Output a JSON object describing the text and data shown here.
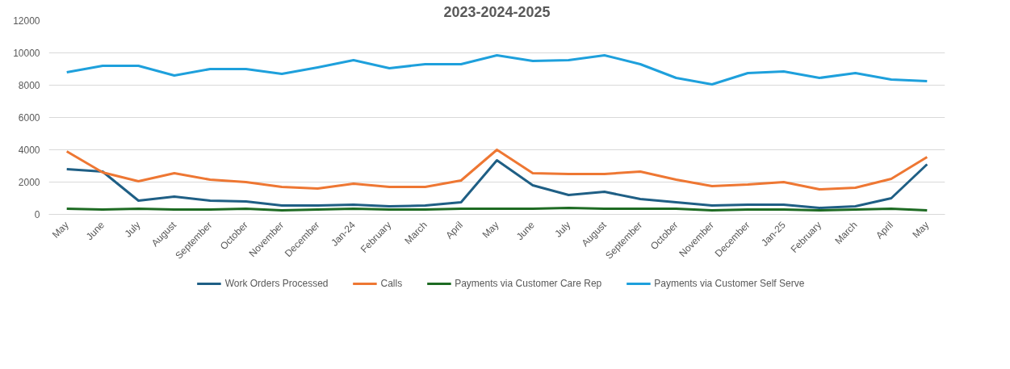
{
  "chart_data": {
    "type": "line",
    "title": "2023-2024-2025",
    "categories": [
      "May",
      "June",
      "July",
      "August",
      "September",
      "October",
      "November",
      "December",
      "Jan-24",
      "February",
      "March",
      "April",
      "May",
      "June",
      "July",
      "August",
      "September",
      "October",
      "November",
      "December",
      "Jan-25",
      "February",
      "March",
      "April",
      "May"
    ],
    "series": [
      {
        "name": "Work Orders Processed",
        "color": "#1f5f85",
        "values": [
          2800,
          2650,
          850,
          1100,
          850,
          800,
          550,
          550,
          600,
          500,
          550,
          750,
          3350,
          1800,
          1200,
          1400,
          950,
          750,
          550,
          600,
          600,
          400,
          500,
          1000,
          3100
        ]
      },
      {
        "name": "Calls",
        "color": "#ee7733",
        "values": [
          3900,
          2600,
          2050,
          2550,
          2150,
          2000,
          1700,
          1600,
          1900,
          1700,
          1700,
          2100,
          4000,
          2550,
          2500,
          2500,
          2650,
          2150,
          1750,
          1850,
          2000,
          1550,
          1650,
          2200,
          3550
        ]
      },
      {
        "name": "Payments via Customer Care Rep",
        "color": "#1e6b23",
        "values": [
          350,
          300,
          350,
          300,
          300,
          350,
          250,
          300,
          350,
          300,
          300,
          350,
          350,
          350,
          400,
          350,
          350,
          350,
          250,
          300,
          300,
          250,
          300,
          350,
          250
        ]
      },
      {
        "name": "Payments via Customer Self Serve",
        "color": "#1ea0dc",
        "values": [
          8800,
          9200,
          9200,
          8600,
          9000,
          9000,
          8700,
          9100,
          9550,
          9050,
          9300,
          9300,
          9850,
          9500,
          9550,
          9850,
          9300,
          8450,
          8050,
          8750,
          8850,
          8450,
          8750,
          8350,
          8250
        ]
      }
    ],
    "ylim": [
      0,
      12000
    ],
    "yticks": [
      0,
      2000,
      4000,
      6000,
      8000,
      10000,
      12000
    ],
    "grid": "y",
    "legend": "bottom",
    "marker": "none",
    "line_style": "solid"
  }
}
